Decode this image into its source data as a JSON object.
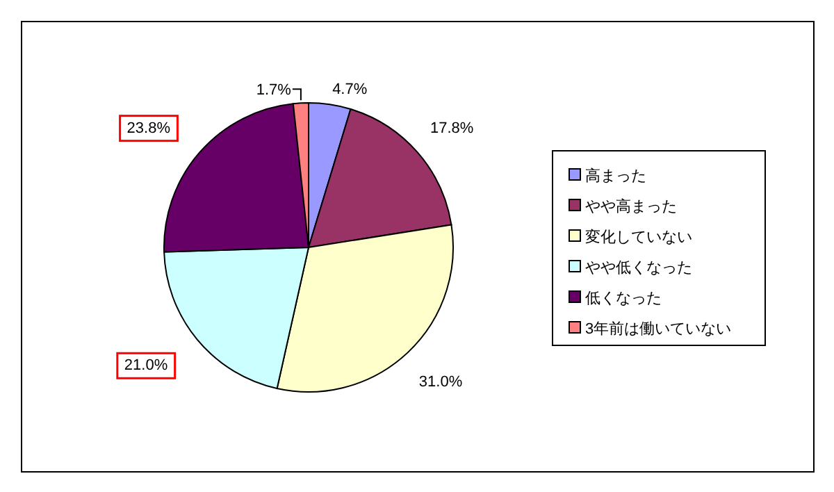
{
  "chart_data": {
    "type": "pie",
    "categories": [
      "高まった",
      "やや高まった",
      "変化していない",
      "やや低くなった",
      "低くなった",
      "3年前は働いていない"
    ],
    "values": [
      4.7,
      17.8,
      31.0,
      21.0,
      23.8,
      1.7
    ],
    "colors": [
      "#9999ff",
      "#993366",
      "#ffffcc",
      "#ccffff",
      "#660066",
      "#ff8080"
    ],
    "value_labels": [
      "4.7%",
      "17.8%",
      "31.0%",
      "21.0%",
      "23.8%",
      "1.7%"
    ],
    "legend": "right"
  }
}
